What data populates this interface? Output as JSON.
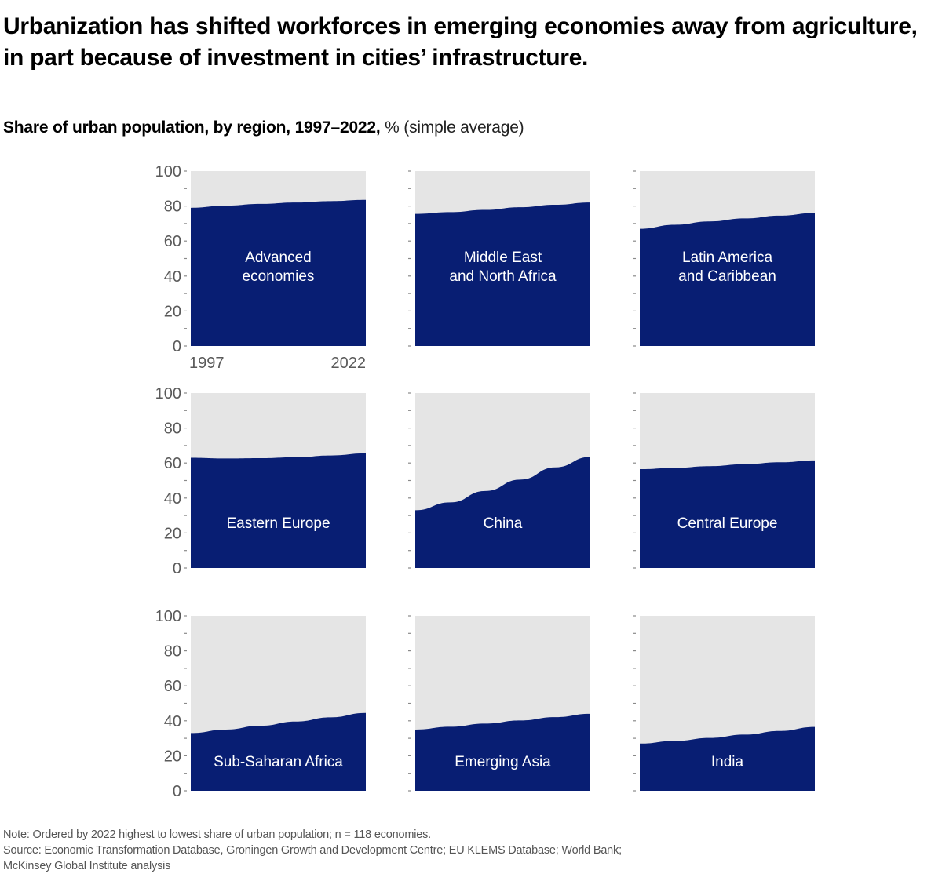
{
  "header": {
    "title": "Urbanization has shifted workforces in emerging economies away from agriculture, in part because of investment in cities’ infrastructure.",
    "subtitle_bold": "Share of urban population, by region, 1997–2022,",
    "subtitle_light": " % (simple average)"
  },
  "colors": {
    "urban": "#081e73",
    "background_area": "#e5e5e5",
    "axis_text": "#5a5a5a"
  },
  "chart_data": {
    "type": "area",
    "title": "Share of urban population, by region, 1997–2022, % (simple average)",
    "xlabel": "",
    "ylabel": "%",
    "x_range": [
      1997,
      2022
    ],
    "ylim": [
      0,
      100
    ],
    "y_ticks": [
      0,
      20,
      40,
      60,
      80,
      100
    ],
    "x_tick_labels": [
      "1997",
      "2022"
    ],
    "grid": false,
    "layout": "3x3 small multiples",
    "x": [
      1997,
      2002,
      2007,
      2012,
      2017,
      2022
    ],
    "series": [
      {
        "name": "Advanced economies",
        "label_lines": [
          "Advanced",
          "economies"
        ],
        "values": [
          79.0,
          80.2,
          81.2,
          82.0,
          82.8,
          83.5
        ]
      },
      {
        "name": "Middle East and North Africa",
        "label_lines": [
          "Middle East",
          "and North Africa"
        ],
        "values": [
          75.5,
          76.5,
          77.8,
          79.3,
          80.7,
          82.0
        ]
      },
      {
        "name": "Latin America and Caribbean",
        "label_lines": [
          "Latin America",
          "and Caribbean"
        ],
        "values": [
          67.0,
          69.3,
          71.2,
          72.9,
          74.5,
          76.0
        ]
      },
      {
        "name": "Eastern Europe",
        "label_lines": [
          "Eastern Europe"
        ],
        "values": [
          63.0,
          62.6,
          62.8,
          63.3,
          64.3,
          65.5
        ]
      },
      {
        "name": "China",
        "label_lines": [
          "China"
        ],
        "values": [
          33.0,
          37.5,
          44.0,
          50.5,
          57.5,
          63.5
        ]
      },
      {
        "name": "Central Europe",
        "label_lines": [
          "Central Europe"
        ],
        "values": [
          56.5,
          57.2,
          58.2,
          59.3,
          60.4,
          61.5
        ]
      },
      {
        "name": "Sub-Saharan Africa",
        "label_lines": [
          "Sub-Saharan Africa"
        ],
        "values": [
          33.0,
          35.0,
          37.2,
          39.6,
          42.0,
          44.5
        ]
      },
      {
        "name": "Emerging Asia",
        "label_lines": [
          "Emerging Asia"
        ],
        "values": [
          35.0,
          36.6,
          38.4,
          40.2,
          42.1,
          44.0
        ]
      },
      {
        "name": "India",
        "label_lines": [
          "India"
        ],
        "values": [
          27.0,
          28.5,
          30.2,
          32.1,
          34.2,
          36.5
        ]
      }
    ]
  },
  "footer": {
    "note": "Note: Ordered by 2022 highest to lowest share of urban population; n = 118 economies.",
    "source_line1": "Source: Economic Transformation Database, Groningen Growth and Development Centre; EU KLEMS Database; World Bank;",
    "source_line2": "McKinsey Global Institute analysis"
  }
}
